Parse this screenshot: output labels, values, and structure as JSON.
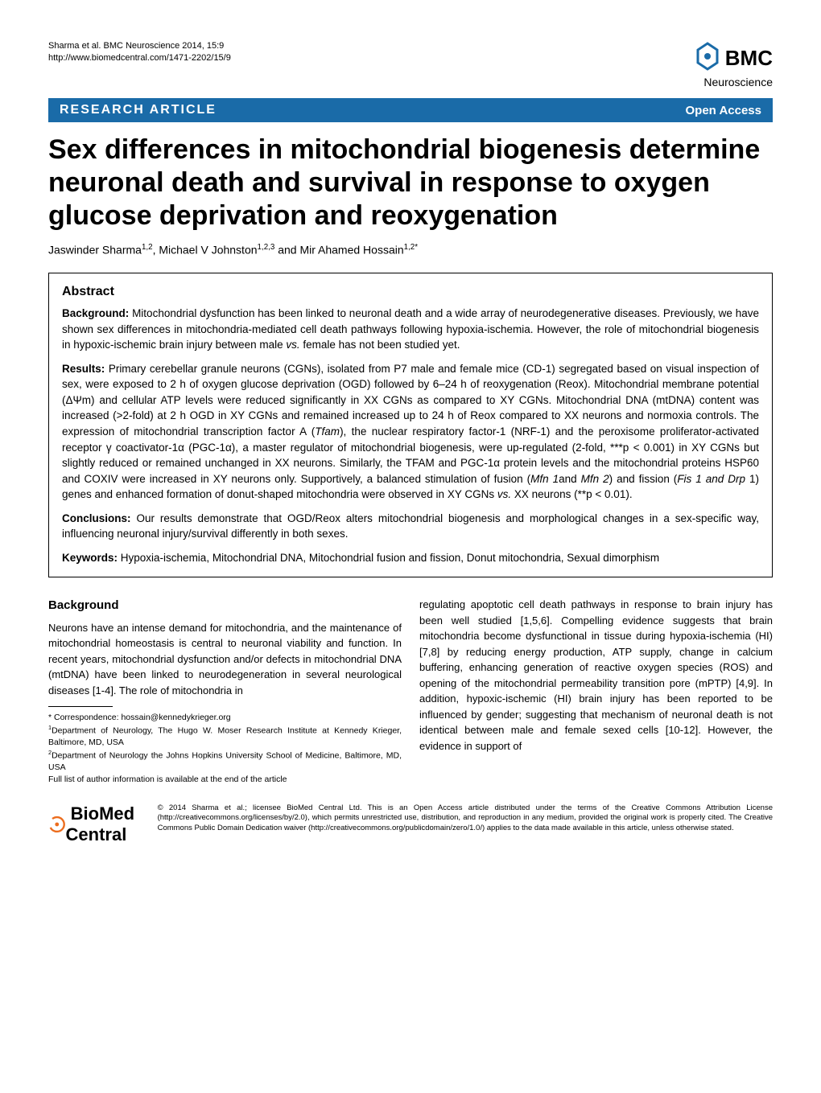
{
  "header": {
    "citation_line1": "Sharma et al. BMC Neuroscience 2014, 15:9",
    "citation_line2": "http://www.biomedcentral.com/1471-2202/15/9",
    "logo_prefix": "BMC",
    "logo_journal": "Neuroscience"
  },
  "banner": {
    "left": "RESEARCH ARTICLE",
    "right": "Open Access"
  },
  "title": "Sex differences in mitochondrial biogenesis determine neuronal death and survival in response to oxygen glucose deprivation and reoxygenation",
  "authors_html": "Jaswinder Sharma<sup>1,2</sup>, Michael V Johnston<sup>1,2,3</sup> and Mir Ahamed Hossain<sup>1,2*</sup>",
  "abstract": {
    "heading": "Abstract",
    "background_label": "Background: ",
    "background": "Mitochondrial dysfunction has been linked to neuronal death and a wide array of neurodegenerative diseases. Previously, we have shown sex differences in mitochondria-mediated cell death pathways following hypoxia-ischemia. However, the role of mitochondrial biogenesis in hypoxic-ischemic brain injury between male vs. female has not been studied yet.",
    "results_label": "Results: ",
    "results": "Primary cerebellar granule neurons (CGNs), isolated from P7 male and female mice (CD-1) segregated based on visual inspection of sex, were exposed to 2 h of oxygen glucose deprivation (OGD) followed by 6–24 h of reoxygenation (Reox). Mitochondrial membrane potential (ΔΨm) and cellular ATP levels were reduced significantly in XX CGNs as compared to XY CGNs. Mitochondrial DNA (mtDNA) content was increased (>2-fold) at 2 h OGD in XY CGNs and remained increased up to 24 h of Reox compared to XX neurons and normoxia controls. The expression of mitochondrial transcription factor A (Tfam), the nuclear respiratory factor-1 (NRF-1) and the peroxisome proliferator-activated receptor γ coactivator-1α (PGC-1α), a master regulator of mitochondrial biogenesis, were up-regulated (2-fold, ***p < 0.001) in XY CGNs but slightly reduced or remained unchanged in XX neurons. Similarly, the TFAM and PGC-1α protein levels and the mitochondrial proteins HSP60 and COXIV were increased in XY neurons only. Supportively, a balanced stimulation of fusion (Mfn 1and Mfn 2) and fission (Fis 1 and Drp 1) genes and enhanced formation of donut-shaped mitochondria were observed in XY CGNs vs. XX neurons (**p < 0.01).",
    "conclusions_label": "Conclusions: ",
    "conclusions": "Our results demonstrate that OGD/Reox alters mitochondrial biogenesis and morphological changes in a sex-specific way, influencing neuronal injury/survival differently in both sexes.",
    "keywords_label": "Keywords: ",
    "keywords": "Hypoxia-ischemia, Mitochondrial DNA, Mitochondrial fusion and fission, Donut mitochondria, Sexual dimorphism"
  },
  "body": {
    "background_heading": "Background",
    "col1": "Neurons have an intense demand for mitochondria, and the maintenance of mitochondrial homeostasis is central to neuronal viability and function. In recent years, mitochondrial dysfunction and/or defects in mitochondrial DNA (mtDNA) have been linked to neurodegeneration in several neurological diseases [1-4]. The role of mitochondria in",
    "col2": "regulating apoptotic cell death pathways in response to brain injury has been well studied [1,5,6]. Compelling evidence suggests that brain mitochondria become dysfunctional in tissue during hypoxia-ischemia (HI) [7,8] by reducing energy production, ATP supply, change in calcium buffering, enhancing generation of reactive oxygen species (ROS) and opening of the mitochondrial permeability transition pore (mPTP) [4,9]. In addition, hypoxic-ischemic (HI) brain injury has been reported to be influenced by gender; suggesting that mechanism of neuronal death is not identical between male and female sexed cells [10-12]. However, the evidence in support of"
  },
  "correspondence": {
    "line1": "* Correspondence: hossain@kennedykrieger.org",
    "line2": "1Department of Neurology, The Hugo W. Moser Research Institute at Kennedy Krieger, Baltimore, MD, USA",
    "line3": "2Department of Neurology the Johns Hopkins University School of Medicine, Baltimore, MD, USA",
    "line4": "Full list of author information is available at the end of the article"
  },
  "footer": {
    "bmc_brand": "BioMed Central",
    "license": "© 2014 Sharma et al.; licensee BioMed Central Ltd. This is an Open Access article distributed under the terms of the Creative Commons Attribution License (http://creativecommons.org/licenses/by/2.0), which permits unrestricted use, distribution, and reproduction in any medium, provided the original work is properly cited. The Creative Commons Public Domain Dedication waiver (http://creativecommons.org/publicdomain/zero/1.0/) applies to the data made available in this article, unless otherwise stated."
  }
}
